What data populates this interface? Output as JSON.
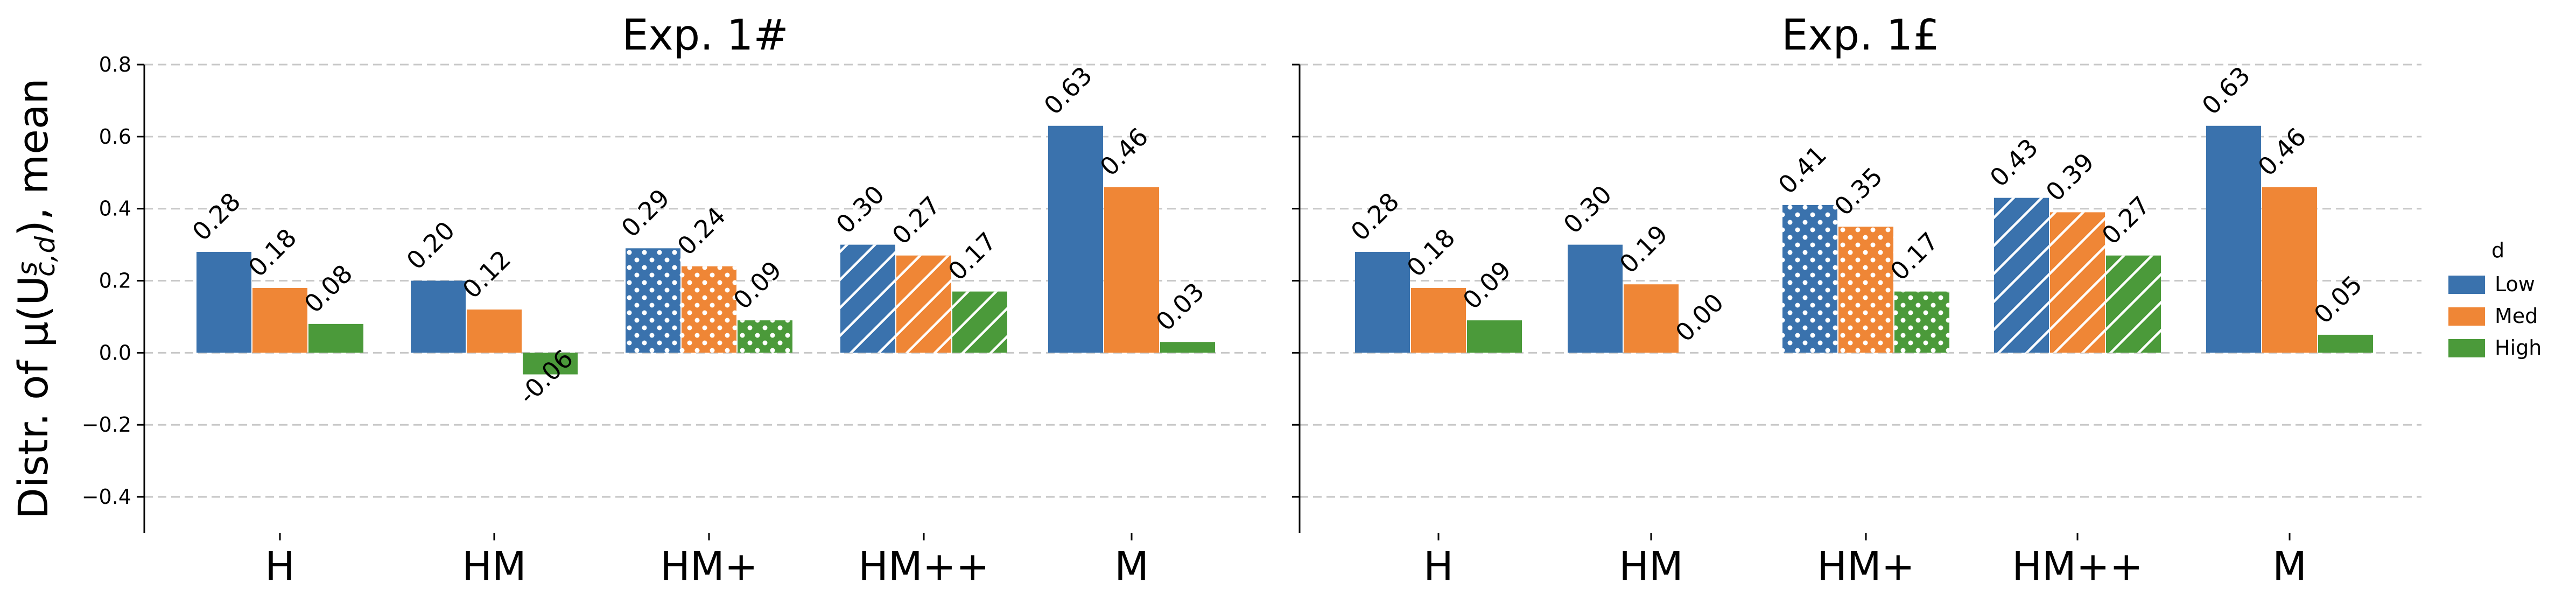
{
  "chart_data": {
    "type": "bar",
    "ylabel": "Distr. of μ(U",
    "ylabel_sup": "s",
    "ylabel_sub": "c,d",
    "ylabel_tail": "), mean",
    "ylim": [
      -0.5,
      0.8
    ],
    "yticks": [
      -0.4,
      -0.2,
      0.0,
      0.2,
      0.4,
      0.6,
      0.8
    ],
    "ytick_labels": [
      "−0.4",
      "−0.2",
      "0.0",
      "0.2",
      "0.4",
      "0.6",
      "0.8"
    ],
    "grid": "horizontal dashed",
    "legend": {
      "title": "d",
      "placement": "right",
      "entries": [
        "Low",
        "Med",
        "High"
      ]
    },
    "colors": {
      "Low": "#3a72ad",
      "Med": "#ef8636",
      "High": "#4b9a3a"
    },
    "categories": [
      "H",
      "HM",
      "HM+",
      "HM++",
      "M"
    ],
    "category_hatch": [
      "none",
      "none",
      "dots",
      "diagonal",
      "none"
    ],
    "panels": [
      {
        "title": "Exp. 1#",
        "series": [
          {
            "name": "Low",
            "values": [
              0.28,
              0.2,
              0.29,
              0.3,
              0.63
            ],
            "labels": [
              "0.28",
              "0.20",
              "0.29",
              "0.30",
              "0.63"
            ]
          },
          {
            "name": "Med",
            "values": [
              0.18,
              0.12,
              0.24,
              0.27,
              0.46
            ],
            "labels": [
              "0.18",
              "0.12",
              "0.24",
              "0.27",
              "0.46"
            ]
          },
          {
            "name": "High",
            "values": [
              0.08,
              -0.06,
              0.09,
              0.17,
              0.03
            ],
            "labels": [
              "0.08",
              "-0.06",
              "0.09",
              "0.17",
              "0.03"
            ]
          }
        ]
      },
      {
        "title": "Exp. 1£",
        "series": [
          {
            "name": "Low",
            "values": [
              0.28,
              0.3,
              0.41,
              0.43,
              0.63
            ],
            "labels": [
              "0.28",
              "0.30",
              "0.41",
              "0.43",
              "0.63"
            ]
          },
          {
            "name": "Med",
            "values": [
              0.18,
              0.19,
              0.35,
              0.39,
              0.46
            ],
            "labels": [
              "0.18",
              "0.19",
              "0.35",
              "0.39",
              "0.46"
            ]
          },
          {
            "name": "High",
            "values": [
              0.09,
              0.0,
              0.17,
              0.27,
              0.05
            ],
            "labels": [
              "0.09",
              "0.00",
              "0.17",
              "0.27",
              "0.05"
            ]
          }
        ]
      }
    ]
  }
}
